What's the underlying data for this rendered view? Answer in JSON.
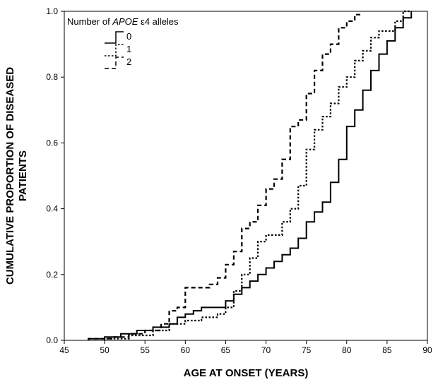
{
  "chart_data": {
    "type": "line",
    "step": true,
    "xlabel": "AGE AT ONSET (YEARS)",
    "ylabel_line1": "CUMULATIVE PROPORTION OF DISEASED",
    "ylabel_line2": "PATIENTS",
    "xlim": [
      45,
      90
    ],
    "ylim": [
      0,
      1
    ],
    "xticks": [
      45,
      50,
      55,
      60,
      65,
      70,
      75,
      80,
      85,
      90
    ],
    "yticks": [
      0.0,
      0.2,
      0.4,
      0.6,
      0.8,
      1.0
    ],
    "ytick_labels": [
      "0.0",
      "0.2",
      "0.4",
      "0.6",
      "0.8",
      "1.0"
    ],
    "grid": false,
    "legend": {
      "position": "top-left",
      "title_prefix": "Number of ",
      "title_italic": "APOE",
      "title_suffix": " ε4 alleles"
    },
    "series": [
      {
        "name": "0",
        "linestyle": "solid",
        "points": [
          [
            48,
            0.0
          ],
          [
            48,
            0.005
          ],
          [
            50,
            0.005
          ],
          [
            50,
            0.01
          ],
          [
            52,
            0.01
          ],
          [
            52,
            0.02
          ],
          [
            54,
            0.02
          ],
          [
            54,
            0.03
          ],
          [
            56,
            0.03
          ],
          [
            56,
            0.04
          ],
          [
            58,
            0.04
          ],
          [
            58,
            0.05
          ],
          [
            59,
            0.05
          ],
          [
            59,
            0.07
          ],
          [
            60,
            0.07
          ],
          [
            60,
            0.08
          ],
          [
            61,
            0.08
          ],
          [
            61,
            0.09
          ],
          [
            62,
            0.09
          ],
          [
            62,
            0.1
          ],
          [
            65,
            0.1
          ],
          [
            65,
            0.12
          ],
          [
            66,
            0.12
          ],
          [
            66,
            0.14
          ],
          [
            67,
            0.14
          ],
          [
            67,
            0.16
          ],
          [
            68,
            0.16
          ],
          [
            68,
            0.18
          ],
          [
            69,
            0.18
          ],
          [
            69,
            0.2
          ],
          [
            70,
            0.2
          ],
          [
            70,
            0.22
          ],
          [
            71,
            0.22
          ],
          [
            71,
            0.24
          ],
          [
            72,
            0.24
          ],
          [
            72,
            0.26
          ],
          [
            73,
            0.26
          ],
          [
            73,
            0.28
          ],
          [
            74,
            0.28
          ],
          [
            74,
            0.31
          ],
          [
            75,
            0.31
          ],
          [
            75,
            0.36
          ],
          [
            76,
            0.36
          ],
          [
            76,
            0.39
          ],
          [
            77,
            0.39
          ],
          [
            77,
            0.42
          ],
          [
            78,
            0.42
          ],
          [
            78,
            0.48
          ],
          [
            79,
            0.48
          ],
          [
            79,
            0.55
          ],
          [
            80,
            0.55
          ],
          [
            80,
            0.65
          ],
          [
            81,
            0.65
          ],
          [
            81,
            0.7
          ],
          [
            82,
            0.7
          ],
          [
            82,
            0.76
          ],
          [
            83,
            0.76
          ],
          [
            83,
            0.82
          ],
          [
            84,
            0.82
          ],
          [
            84,
            0.87
          ],
          [
            85,
            0.87
          ],
          [
            85,
            0.91
          ],
          [
            86,
            0.91
          ],
          [
            86,
            0.95
          ],
          [
            87,
            0.95
          ],
          [
            87,
            0.98
          ],
          [
            88,
            0.98
          ],
          [
            88,
            1.0
          ]
        ]
      },
      {
        "name": "1",
        "linestyle": "dotted",
        "points": [
          [
            50,
            0.0
          ],
          [
            50,
            0.005
          ],
          [
            53,
            0.005
          ],
          [
            53,
            0.015
          ],
          [
            56,
            0.015
          ],
          [
            56,
            0.03
          ],
          [
            58,
            0.03
          ],
          [
            58,
            0.05
          ],
          [
            60,
            0.05
          ],
          [
            60,
            0.06
          ],
          [
            62,
            0.06
          ],
          [
            62,
            0.07
          ],
          [
            64,
            0.07
          ],
          [
            64,
            0.08
          ],
          [
            65,
            0.08
          ],
          [
            65,
            0.1
          ],
          [
            66,
            0.1
          ],
          [
            66,
            0.15
          ],
          [
            67,
            0.15
          ],
          [
            67,
            0.2
          ],
          [
            68,
            0.2
          ],
          [
            68,
            0.25
          ],
          [
            69,
            0.25
          ],
          [
            69,
            0.3
          ],
          [
            70,
            0.3
          ],
          [
            70,
            0.32
          ],
          [
            72,
            0.32
          ],
          [
            72,
            0.36
          ],
          [
            73,
            0.36
          ],
          [
            73,
            0.4
          ],
          [
            74,
            0.4
          ],
          [
            74,
            0.47
          ],
          [
            75,
            0.47
          ],
          [
            75,
            0.58
          ],
          [
            76,
            0.58
          ],
          [
            76,
            0.64
          ],
          [
            77,
            0.64
          ],
          [
            77,
            0.68
          ],
          [
            78,
            0.68
          ],
          [
            78,
            0.72
          ],
          [
            79,
            0.72
          ],
          [
            79,
            0.77
          ],
          [
            80,
            0.77
          ],
          [
            80,
            0.8
          ],
          [
            81,
            0.8
          ],
          [
            81,
            0.85
          ],
          [
            82,
            0.85
          ],
          [
            82,
            0.88
          ],
          [
            83,
            0.88
          ],
          [
            83,
            0.92
          ],
          [
            84,
            0.92
          ],
          [
            84,
            0.94
          ],
          [
            86,
            0.94
          ],
          [
            86,
            0.97
          ],
          [
            87,
            0.97
          ],
          [
            87,
            1.0
          ],
          [
            88,
            1.0
          ]
        ]
      },
      {
        "name": "2",
        "linestyle": "dashed",
        "points": [
          [
            48,
            0.0
          ],
          [
            48,
            0.005
          ],
          [
            51,
            0.005
          ],
          [
            51,
            0.01
          ],
          [
            53,
            0.01
          ],
          [
            53,
            0.02
          ],
          [
            55,
            0.02
          ],
          [
            55,
            0.03
          ],
          [
            57,
            0.03
          ],
          [
            57,
            0.05
          ],
          [
            58,
            0.05
          ],
          [
            58,
            0.09
          ],
          [
            59,
            0.09
          ],
          [
            59,
            0.1
          ],
          [
            60,
            0.1
          ],
          [
            60,
            0.16
          ],
          [
            63,
            0.16
          ],
          [
            63,
            0.17
          ],
          [
            64,
            0.17
          ],
          [
            64,
            0.19
          ],
          [
            65,
            0.19
          ],
          [
            65,
            0.23
          ],
          [
            66,
            0.23
          ],
          [
            66,
            0.27
          ],
          [
            67,
            0.27
          ],
          [
            67,
            0.34
          ],
          [
            68,
            0.34
          ],
          [
            68,
            0.36
          ],
          [
            69,
            0.36
          ],
          [
            69,
            0.41
          ],
          [
            70,
            0.41
          ],
          [
            70,
            0.46
          ],
          [
            71,
            0.46
          ],
          [
            71,
            0.49
          ],
          [
            72,
            0.49
          ],
          [
            72,
            0.55
          ],
          [
            73,
            0.55
          ],
          [
            73,
            0.65
          ],
          [
            74,
            0.65
          ],
          [
            74,
            0.67
          ],
          [
            75,
            0.67
          ],
          [
            75,
            0.75
          ],
          [
            76,
            0.75
          ],
          [
            76,
            0.82
          ],
          [
            77,
            0.82
          ],
          [
            77,
            0.87
          ],
          [
            78,
            0.87
          ],
          [
            78,
            0.9
          ],
          [
            79,
            0.9
          ],
          [
            79,
            0.95
          ],
          [
            80,
            0.95
          ],
          [
            80,
            0.97
          ],
          [
            81,
            0.97
          ],
          [
            81,
            0.99
          ],
          [
            82,
            0.99
          ]
        ]
      }
    ]
  }
}
